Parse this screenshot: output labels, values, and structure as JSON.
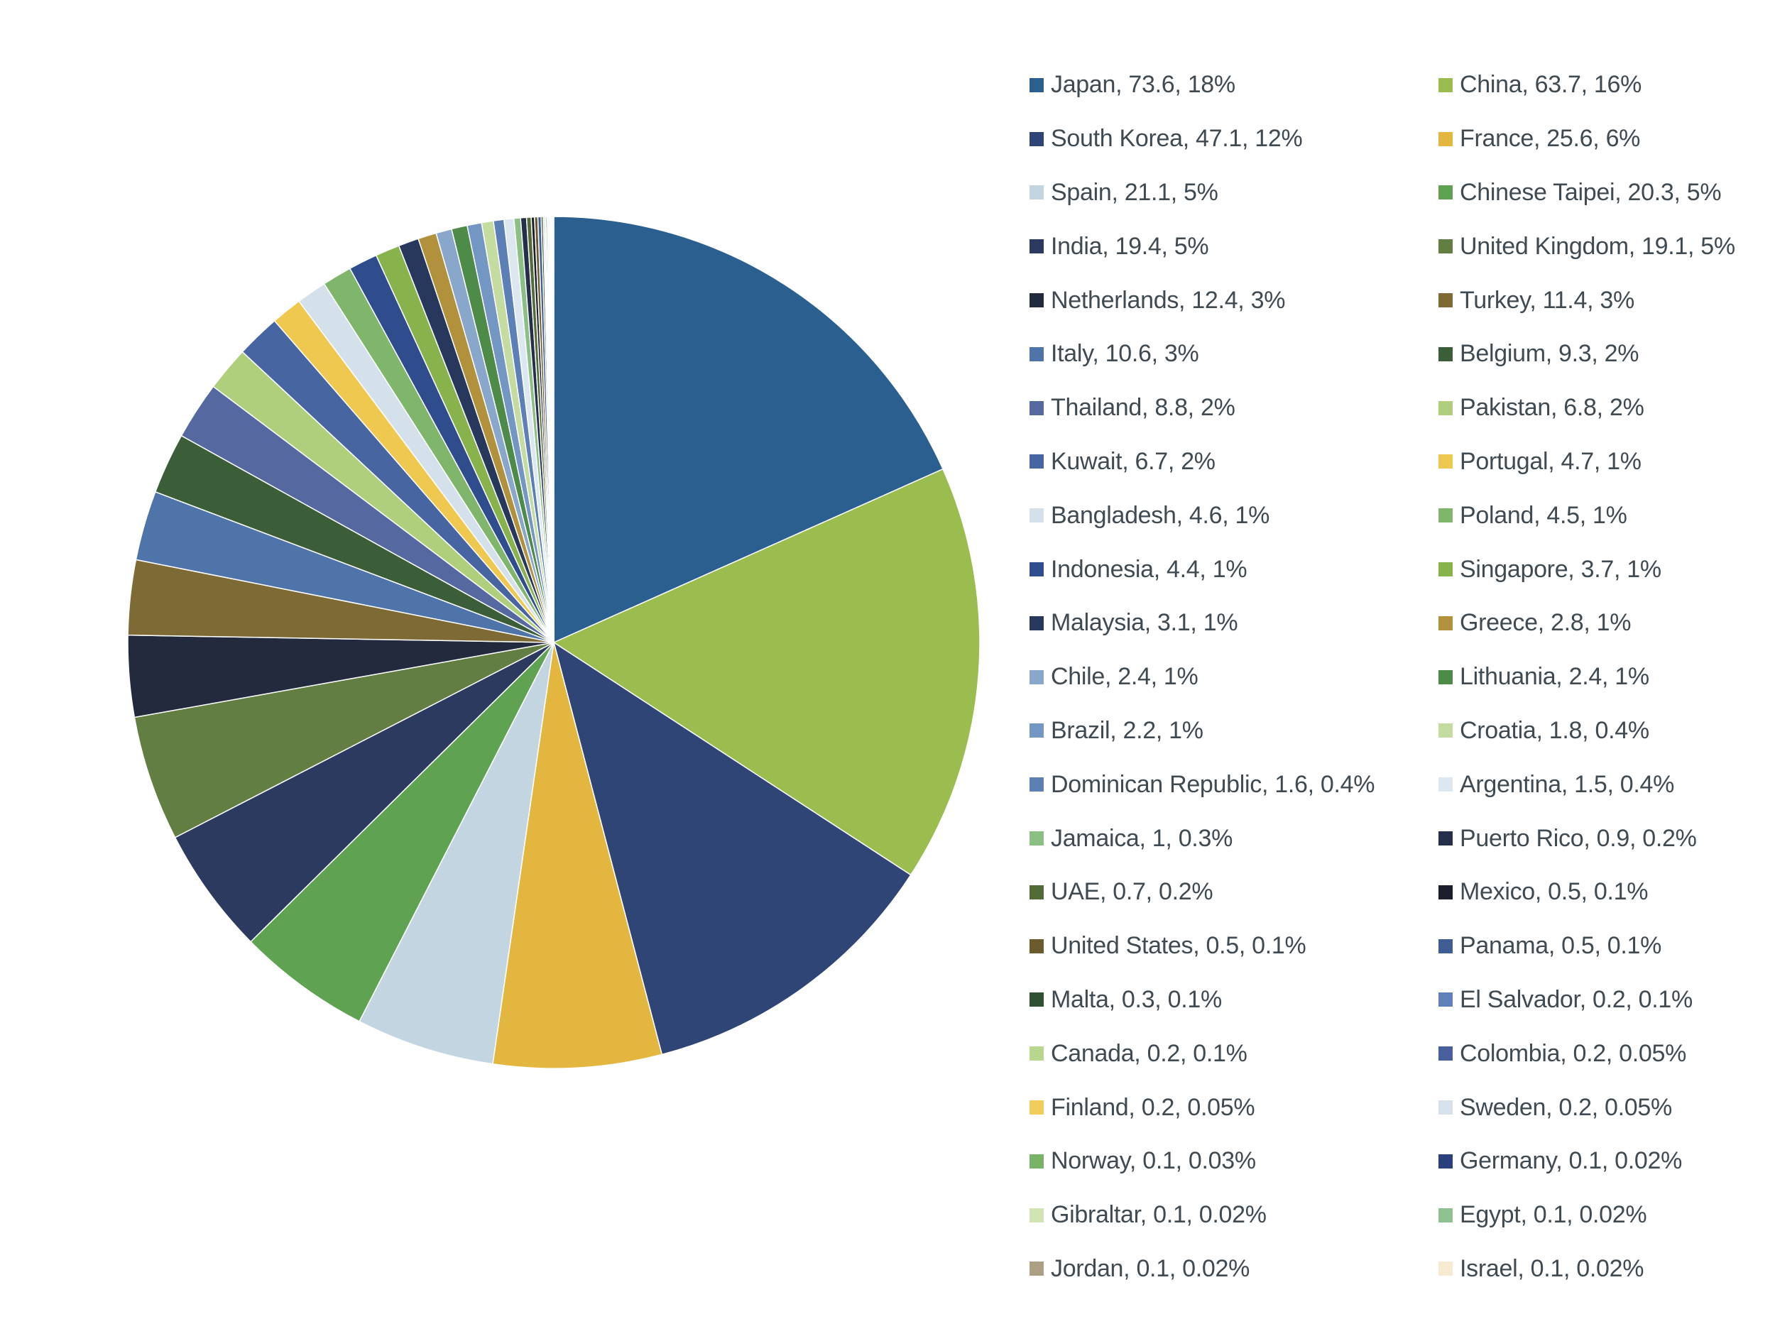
{
  "chart_data": {
    "type": "pie",
    "title": "",
    "legend_position": "right",
    "slices": [
      {
        "label": "Japan, 73.6, 18%",
        "name": "Japan",
        "value": 73.6,
        "color": "#2a5f8f"
      },
      {
        "label": "China, 63.7, 16%",
        "name": "China",
        "value": 63.7,
        "color": "#9bbd4f"
      },
      {
        "label": "South Korea, 47.1, 12%",
        "name": "South Korea",
        "value": 47.1,
        "color": "#2f4575"
      },
      {
        "label": "France, 25.6, 6%",
        "name": "France",
        "value": 25.6,
        "color": "#e3b73f"
      },
      {
        "label": "Spain, 21.1, 5%",
        "name": "Spain",
        "value": 21.1,
        "color": "#c4d5e2"
      },
      {
        "label": "Chinese Taipei, 20.3, 5%",
        "name": "Chinese Taipei",
        "value": 20.3,
        "color": "#5fa352"
      },
      {
        "label": "India, 19.4, 5%",
        "name": "India",
        "value": 19.4,
        "color": "#2c3a5f"
      },
      {
        "label": "United Kingdom, 19.1, 5%",
        "name": "United Kingdom",
        "value": 19.1,
        "color": "#627e42"
      },
      {
        "label": "Netherlands, 12.4, 3%",
        "name": "Netherlands",
        "value": 12.4,
        "color": "#232a3e"
      },
      {
        "label": "Turkey, 11.4, 3%",
        "name": "Turkey",
        "value": 11.4,
        "color": "#7e6a34"
      },
      {
        "label": "Italy, 10.6, 3%",
        "name": "Italy",
        "value": 10.6,
        "color": "#4f74a9"
      },
      {
        "label": "Belgium, 9.3, 2%",
        "name": "Belgium",
        "value": 9.3,
        "color": "#3b5e39"
      },
      {
        "label": "Thailand, 8.8, 2%",
        "name": "Thailand",
        "value": 8.8,
        "color": "#5569a0"
      },
      {
        "label": "Pakistan, 6.8, 2%",
        "name": "Pakistan",
        "value": 6.8,
        "color": "#b0cf7c"
      },
      {
        "label": "Kuwait, 6.7, 2%",
        "name": "Kuwait",
        "value": 6.7,
        "color": "#4765a0"
      },
      {
        "label": "Portugal, 4.7, 1%",
        "name": "Portugal",
        "value": 4.7,
        "color": "#efc84f"
      },
      {
        "label": "Bangladesh, 4.6, 1%",
        "name": "Bangladesh",
        "value": 4.6,
        "color": "#d4e0ea"
      },
      {
        "label": "Poland, 4.5, 1%",
        "name": "Poland",
        "value": 4.5,
        "color": "#7fb66b"
      },
      {
        "label": "Indonesia, 4.4, 1%",
        "name": "Indonesia",
        "value": 4.4,
        "color": "#2f4c8c"
      },
      {
        "label": "Singapore, 3.7, 1%",
        "name": "Singapore",
        "value": 3.7,
        "color": "#88b34c"
      },
      {
        "label": "Malaysia, 3.1, 1%",
        "name": "Malaysia",
        "value": 3.1,
        "color": "#28385c"
      },
      {
        "label": "Greece, 2.8, 1%",
        "name": "Greece",
        "value": 2.8,
        "color": "#b1913c"
      },
      {
        "label": "Chile, 2.4, 1%",
        "name": "Chile",
        "value": 2.4,
        "color": "#89a7cb"
      },
      {
        "label": "Lithuania, 2.4, 1%",
        "name": "Lithuania",
        "value": 2.4,
        "color": "#4e8a48"
      },
      {
        "label": "Brazil, 2.2, 1%",
        "name": "Brazil",
        "value": 2.2,
        "color": "#7496c3"
      },
      {
        "label": "Croatia, 1.8, 0.4%",
        "name": "Croatia",
        "value": 1.8,
        "color": "#c4dca0"
      },
      {
        "label": "Dominican Republic, 1.6, 0.4%",
        "name": "Dominican Republic",
        "value": 1.6,
        "color": "#5c7fb5"
      },
      {
        "label": "Argentina, 1.5, 0.4%",
        "name": "Argentina",
        "value": 1.5,
        "color": "#dce7ef"
      },
      {
        "label": "Jamaica, 1, 0.3%",
        "name": "Jamaica",
        "value": 1.0,
        "color": "#8bbf84"
      },
      {
        "label": "Puerto Rico, 0.9, 0.2%",
        "name": "Puerto Rico",
        "value": 0.9,
        "color": "#252f4a"
      },
      {
        "label": "UAE, 0.7, 0.2%",
        "name": "UAE",
        "value": 0.7,
        "color": "#536c37"
      },
      {
        "label": "Mexico, 0.5, 0.1%",
        "name": "Mexico",
        "value": 0.5,
        "color": "#1b1f2b"
      },
      {
        "label": "United States, 0.5, 0.1%",
        "name": "United States",
        "value": 0.5,
        "color": "#6b5a2c"
      },
      {
        "label": "Panama, 0.5, 0.1%",
        "name": "Panama",
        "value": 0.5,
        "color": "#3f5d93"
      },
      {
        "label": "Malta, 0.3, 0.1%",
        "name": "Malta",
        "value": 0.3,
        "color": "#314f31"
      },
      {
        "label": "El Salvador, 0.2, 0.1%",
        "name": "El Salvador",
        "value": 0.2,
        "color": "#5f80b8"
      },
      {
        "label": "Canada, 0.2, 0.1%",
        "name": "Canada",
        "value": 0.2,
        "color": "#b9d68f"
      },
      {
        "label": "Colombia, 0.2, 0.05%",
        "name": "Colombia",
        "value": 0.2,
        "color": "#4a5f9d"
      },
      {
        "label": "Finland, 0.2, 0.05%",
        "name": "Finland",
        "value": 0.2,
        "color": "#f0cd5c"
      },
      {
        "label": "Sweden, 0.2, 0.05%",
        "name": "Sweden",
        "value": 0.2,
        "color": "#d7e2ec"
      },
      {
        "label": "Norway, 0.1, 0.03%",
        "name": "Norway",
        "value": 0.1,
        "color": "#7ab268"
      },
      {
        "label": "Germany, 0.1, 0.02%",
        "name": "Germany",
        "value": 0.1,
        "color": "#2b3f7d"
      },
      {
        "label": "Gibraltar, 0.1, 0.02%",
        "name": "Gibraltar",
        "value": 0.1,
        "color": "#d2e4b4"
      },
      {
        "label": "Egypt, 0.1, 0.02%",
        "name": "Egypt",
        "value": 0.1,
        "color": "#8fc193"
      },
      {
        "label": "Jordan, 0.1, 0.02%",
        "name": "Jordan",
        "value": 0.1,
        "color": "#ab9f84"
      },
      {
        "label": "Israel, 0.1, 0.02%",
        "name": "Israel",
        "value": 0.1,
        "color": "#f6ead3"
      }
    ]
  }
}
